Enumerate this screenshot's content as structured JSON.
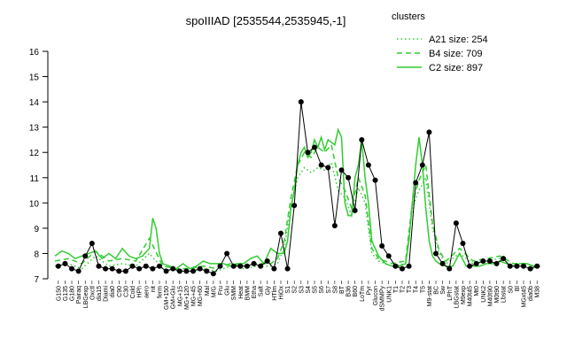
{
  "chart_data": {
    "type": "line",
    "title": "spoIIIAD [2535544,2535945,-1]",
    "ylim": [
      7,
      16
    ],
    "yticks": [
      7,
      8,
      9,
      10,
      11,
      12,
      13,
      14,
      15,
      16
    ],
    "legend": {
      "title": "clusters",
      "position": "top-right",
      "entries": [
        {
          "label": "A21 size: 254",
          "style": "dotted"
        },
        {
          "label": "B4 size: 709",
          "style": "dashed"
        },
        {
          "label": "C2 size: 897",
          "style": "solid"
        }
      ]
    },
    "colors": {
      "series": "#33cc33",
      "points": "#000000"
    },
    "x_labels": [
      "G150",
      "G135",
      "G180",
      "Pairaq",
      "LBGexp",
      "Oxctl",
      "dia15",
      "Diami",
      "dia0",
      "C90",
      "C30",
      "Cold",
      "HPh",
      "aero",
      "nit",
      "ferm",
      "GM+150",
      "GM+Glu",
      "MG+15",
      "MG+120",
      "MG+45",
      "MG+60",
      "Mal",
      "M/G",
      "Fru",
      "Glu",
      "SMM",
      "Heat",
      "BMM",
      "Etha",
      "Salt",
      "Gly",
      "HTlm",
      "HiOx",
      "S1",
      "S2",
      "S3",
      "S4",
      "S5",
      "S6",
      "S7",
      "S8",
      "BT",
      "B36",
      "B60",
      "LoTm",
      "Pyr",
      "Glucon",
      "dSMMPy",
      "UNK1",
      "T1",
      "T2",
      "T3",
      "T4",
      "T5",
      "M9-stat",
      "BC",
      "Sw",
      "LPhT",
      "LBGstat",
      "M9exp",
      "M40t45",
      "Mt0",
      "UNK2",
      "M40t90",
      "M0t90",
      "Lbstat",
      "S0",
      "Bl",
      "MGxt45",
      "dia0b",
      "M38"
    ],
    "x_positions": [
      0.5,
      1.5,
      2.5,
      3.5,
      4.5,
      5.5,
      6.5,
      7.5,
      8.5,
      9.5,
      10.5,
      11.5,
      12.5,
      13.5,
      14.5,
      15.5,
      16.5,
      17.5,
      18.5,
      19.5,
      20.5,
      21.5,
      22.5,
      23.5,
      24.5,
      25.5,
      26.5,
      27.5,
      28.5,
      29.5,
      30.5,
      31.5,
      32.5,
      33.5,
      34.5,
      35.5,
      36.5,
      37.5,
      38.5,
      39.5,
      40.5,
      41.5,
      42.5,
      43.5,
      44.5,
      45.5,
      46.5,
      47.5,
      48.5,
      49.5,
      50.5,
      51.5,
      52.5,
      53.5,
      54.5,
      55.5,
      56.5,
      57.5,
      58.5,
      59.5,
      60.5,
      61.5,
      62.5,
      63.5,
      64.5,
      65.5,
      66.5,
      67.5,
      68.5,
      69.5,
      70.5,
      71.5
    ],
    "xlim": [
      0,
      72
    ],
    "series": [
      {
        "name": "A21 size: 254",
        "style": "dotted",
        "x": [
          0,
          2,
          4,
          6,
          8,
          10,
          12,
          14,
          16,
          18,
          20,
          22,
          24,
          26,
          28,
          30,
          32,
          33,
          34,
          35,
          36,
          37,
          38,
          39,
          40,
          41,
          42,
          43,
          44,
          45,
          46,
          47,
          48,
          50,
          52,
          53,
          54,
          55,
          56,
          57,
          58,
          60,
          62,
          64,
          66,
          68,
          70,
          71
        ],
        "y": [
          7.5,
          7.6,
          7.4,
          7.9,
          7.5,
          7.6,
          7.5,
          8.0,
          7.4,
          7.3,
          7.3,
          7.4,
          7.3,
          7.5,
          7.4,
          7.5,
          7.5,
          7.6,
          8.2,
          9.9,
          11.0,
          11.4,
          11.2,
          11.4,
          11.3,
          11.6,
          10.5,
          10.2,
          9.5,
          10.6,
          10.0,
          8.0,
          7.7,
          7.5,
          7.6,
          9.8,
          10.5,
          11.0,
          9.0,
          8.0,
          7.6,
          8.0,
          7.6,
          7.7,
          7.8,
          7.5,
          7.5,
          7.4
        ]
      },
      {
        "name": "B4 size: 709",
        "style": "dashed",
        "x": [
          0,
          2,
          4,
          6,
          8,
          10,
          12,
          14,
          16,
          18,
          20,
          22,
          24,
          26,
          28,
          30,
          32,
          33,
          34,
          35,
          36,
          37,
          38,
          39,
          40,
          41,
          42,
          43,
          44,
          45,
          46,
          47,
          48,
          50,
          52,
          53,
          54,
          55,
          56,
          57,
          58,
          60,
          62,
          64,
          66,
          68,
          70,
          71
        ],
        "y": [
          7.7,
          7.8,
          7.6,
          8.1,
          7.7,
          7.8,
          7.7,
          8.6,
          7.5,
          7.4,
          7.4,
          7.5,
          7.4,
          7.6,
          7.5,
          7.6,
          7.6,
          7.8,
          8.5,
          10.2,
          11.5,
          12.0,
          11.8,
          12.2,
          12.0,
          12.3,
          11.0,
          10.5,
          9.8,
          11.0,
          10.3,
          8.2,
          7.8,
          7.6,
          7.7,
          10.0,
          10.9,
          11.5,
          9.2,
          8.1,
          7.7,
          8.2,
          7.7,
          7.8,
          7.9,
          7.6,
          7.6,
          7.5
        ]
      },
      {
        "name": "C2 size: 897",
        "style": "solid",
        "x": [
          0,
          1,
          2,
          3,
          4,
          5,
          6,
          7,
          8,
          9,
          10,
          11,
          12,
          13,
          14,
          14.5,
          15,
          15.5,
          16,
          17,
          18,
          19,
          20,
          21,
          22,
          23,
          24,
          25,
          26,
          27,
          28,
          29,
          30,
          31,
          32,
          33,
          34,
          34.5,
          35,
          35.5,
          36,
          36.5,
          37,
          37.5,
          38,
          38.5,
          39,
          39.5,
          40,
          40.5,
          41,
          41.5,
          42,
          42.5,
          43,
          43.5,
          44,
          44.5,
          45,
          45.5,
          46,
          46.5,
          47,
          47.5,
          48,
          49,
          50,
          51,
          52,
          52.5,
          53,
          53.5,
          54,
          54.5,
          55,
          55.5,
          56,
          56.5,
          57,
          58,
          59,
          60,
          61,
          62,
          63,
          64,
          65,
          66,
          67,
          68,
          69,
          70,
          71,
          72
        ],
        "y": [
          7.9,
          8.1,
          8.0,
          7.8,
          7.9,
          8.0,
          8.1,
          7.8,
          8.0,
          7.8,
          8.2,
          7.9,
          7.8,
          7.9,
          8.2,
          9.4,
          9.0,
          8.0,
          7.6,
          7.5,
          7.4,
          7.6,
          7.4,
          7.5,
          7.7,
          7.6,
          7.6,
          7.6,
          7.5,
          7.6,
          7.6,
          7.8,
          7.9,
          7.6,
          8.2,
          8.0,
          8.0,
          8.5,
          9.8,
          10.5,
          11.5,
          12.0,
          12.2,
          11.8,
          12.0,
          12.5,
          12.2,
          12.6,
          12.1,
          12.5,
          12.4,
          12.3,
          12.9,
          12.6,
          10.0,
          9.5,
          9.5,
          11.0,
          11.5,
          12.5,
          11.0,
          10.0,
          8.5,
          8.2,
          7.9,
          7.6,
          7.5,
          7.5,
          7.6,
          8.5,
          10.0,
          11.5,
          12.6,
          11.5,
          9.8,
          8.5,
          7.9,
          7.7,
          7.6,
          7.5,
          7.5,
          8.0,
          7.5,
          7.5,
          7.5,
          7.6,
          7.6,
          7.7,
          7.6,
          7.5,
          7.6,
          7.6,
          7.5,
          7.5
        ]
      },
      {
        "name": "points",
        "style": "points",
        "x": [
          0.5,
          1.5,
          2.5,
          3.5,
          4.5,
          5.5,
          6.5,
          7.5,
          8.5,
          9.5,
          10.5,
          11.5,
          12.5,
          13.5,
          14.5,
          15.5,
          16.5,
          17.5,
          18.5,
          19.5,
          20.5,
          21.5,
          22.5,
          23.5,
          24.5,
          25.5,
          26.5,
          27.5,
          28.5,
          29.5,
          30.5,
          31.5,
          32.5,
          33.5,
          34.5,
          35.5,
          36.5,
          37.5,
          38.5,
          39.5,
          40.5,
          41.5,
          42.5,
          43.5,
          44.5,
          45.5,
          46.5,
          47.5,
          48.5,
          49.5,
          50.5,
          51.5,
          52.5,
          53.5,
          54.5,
          55.5,
          56.5,
          57.5,
          58.5,
          59.5,
          60.5,
          61.5,
          62.5,
          63.5,
          64.5,
          65.5,
          66.5,
          67.5,
          68.5,
          69.5,
          70.5,
          71.5
        ],
        "y": [
          7.5,
          7.6,
          7.4,
          7.3,
          7.9,
          8.4,
          7.5,
          7.4,
          7.4,
          7.3,
          7.3,
          7.5,
          7.4,
          7.5,
          7.4,
          7.5,
          7.3,
          7.4,
          7.3,
          7.3,
          7.3,
          7.4,
          7.3,
          7.2,
          7.5,
          8.0,
          7.5,
          7.5,
          7.5,
          7.6,
          7.5,
          7.7,
          7.4,
          8.8,
          7.4,
          9.9,
          14.0,
          12.0,
          12.2,
          11.5,
          11.4,
          9.1,
          11.3,
          11.0,
          9.7,
          12.5,
          11.5,
          10.9,
          8.3,
          7.9,
          7.5,
          7.4,
          7.5,
          10.8,
          11.5,
          12.8,
          8.0,
          7.6,
          7.4,
          9.2,
          8.4,
          7.5,
          7.6,
          7.7,
          7.7,
          7.6,
          7.8,
          7.5,
          7.5,
          7.5,
          7.4,
          7.5
        ]
      }
    ]
  }
}
